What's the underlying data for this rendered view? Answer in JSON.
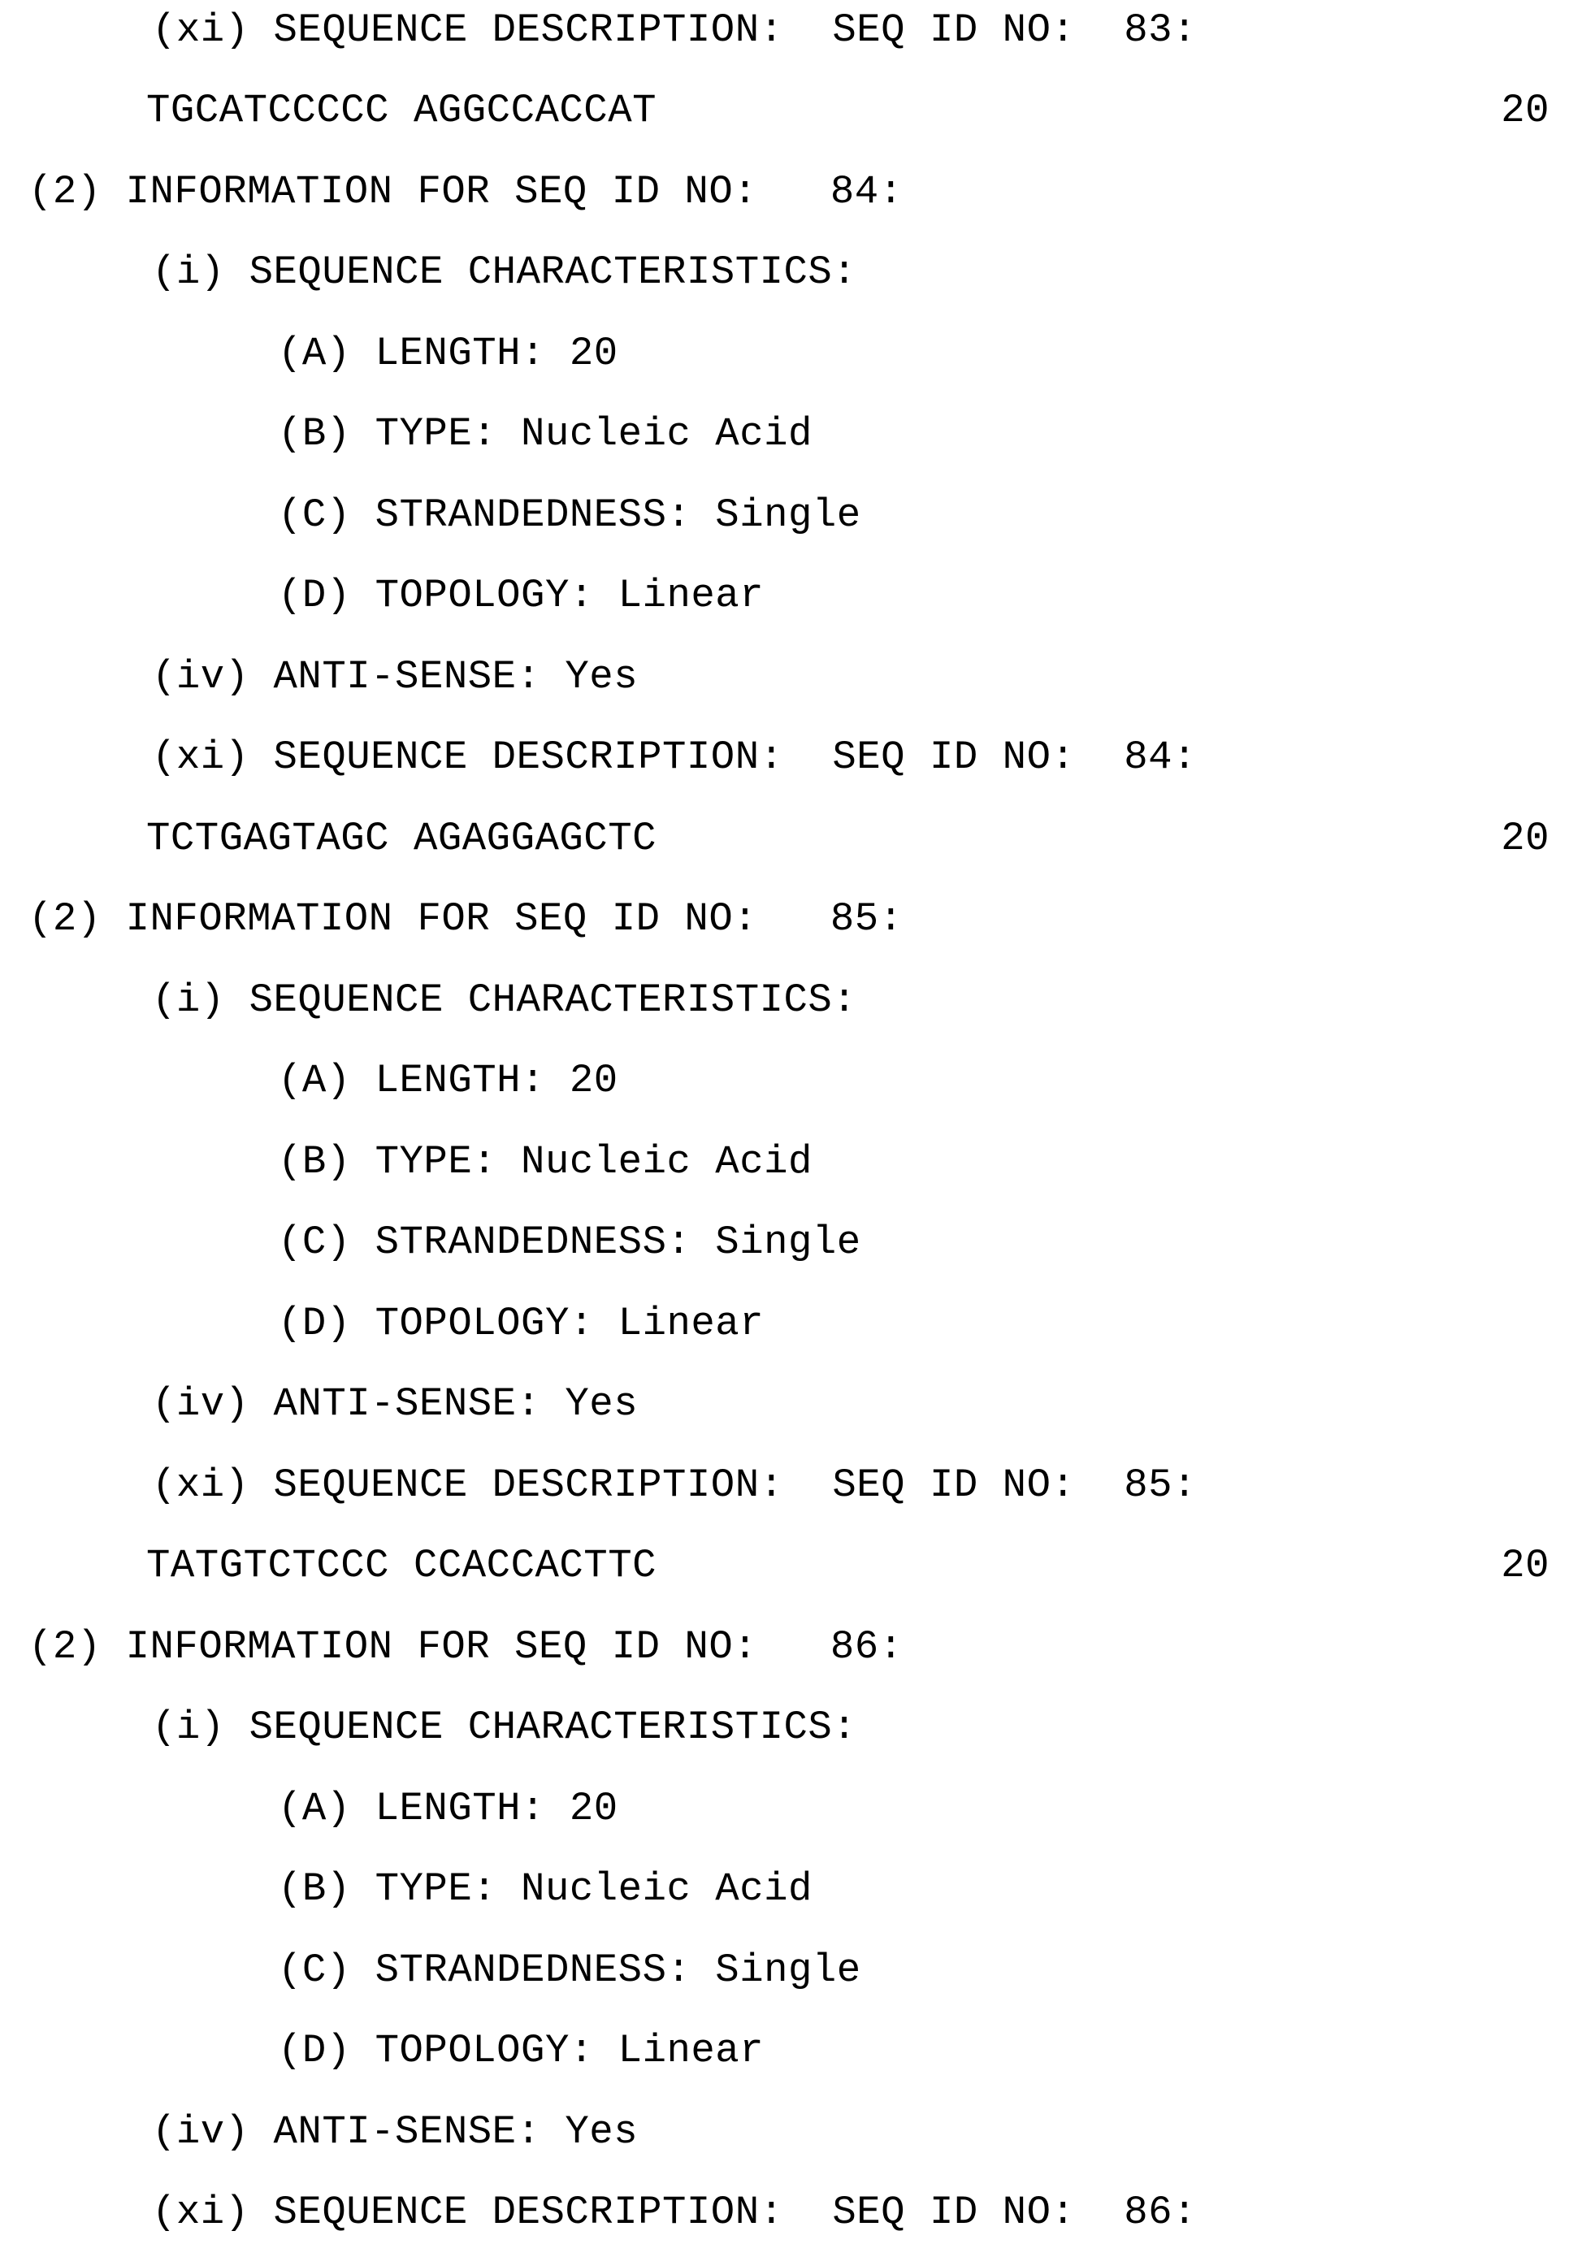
{
  "page": {
    "lines": [
      {
        "text": "(xi) SEQUENCE DESCRIPTION:  SEQ ID NO:  83:"
      },
      {
        "text": "TGCATCCCCC AGGCCACCAT",
        "num": "20"
      },
      {
        "text": "(2) INFORMATION FOR SEQ ID NO:   84:"
      },
      {
        "text": "(i) SEQUENCE CHARACTERISTICS:"
      },
      {
        "text": "(A) LENGTH: 20"
      },
      {
        "text": "(B) TYPE: Nucleic Acid"
      },
      {
        "text": "(C) STRANDEDNESS: Single"
      },
      {
        "text": "(D) TOPOLOGY: Linear"
      },
      {
        "text": "(iv) ANTI-SENSE: Yes"
      },
      {
        "text": "(xi) SEQUENCE DESCRIPTION:  SEQ ID NO:  84:"
      },
      {
        "text": "TCTGAGTAGC AGAGGAGCTC",
        "num": "20"
      },
      {
        "text": "(2) INFORMATION FOR SEQ ID NO:   85:"
      },
      {
        "text": "(i) SEQUENCE CHARACTERISTICS:"
      },
      {
        "text": "(A) LENGTH: 20"
      },
      {
        "text": "(B) TYPE: Nucleic Acid"
      },
      {
        "text": "(C) STRANDEDNESS: Single"
      },
      {
        "text": "(D) TOPOLOGY: Linear"
      },
      {
        "text": "(iv) ANTI-SENSE: Yes"
      },
      {
        "text": "(xi) SEQUENCE DESCRIPTION:  SEQ ID NO:  85:"
      },
      {
        "text": "TATGTCTCCC CCACCACTTC",
        "num": "20"
      },
      {
        "text": "(2) INFORMATION FOR SEQ ID NO:   86:"
      },
      {
        "text": "(i) SEQUENCE CHARACTERISTICS:"
      },
      {
        "text": "(A) LENGTH: 20"
      },
      {
        "text": "(B) TYPE: Nucleic Acid"
      },
      {
        "text": "(C) STRANDEDNESS: Single"
      },
      {
        "text": "(D) TOPOLOGY: Linear"
      },
      {
        "text": "(iv) ANTI-SENSE: Yes"
      },
      {
        "text": "(xi) SEQUENCE DESCRIPTION:  SEQ ID NO:  86:"
      }
    ]
  }
}
